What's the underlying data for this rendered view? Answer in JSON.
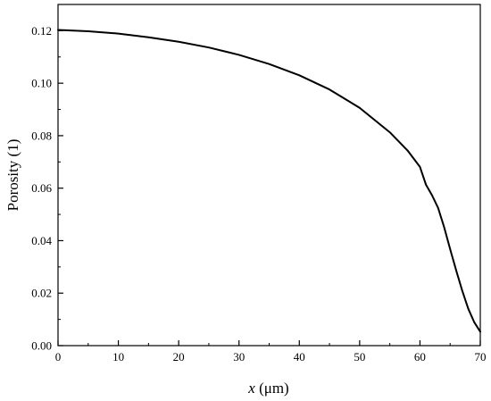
{
  "chart_data": {
    "type": "line",
    "title": "",
    "xlabel_var": "x",
    "xlabel_unit": " (μm)",
    "ylabel": "Porosity (1)",
    "xlim": [
      0,
      70
    ],
    "ylim": [
      0,
      0.13
    ],
    "xticks": [
      0,
      10,
      20,
      30,
      40,
      50,
      60,
      70
    ],
    "yticks": [
      0.0,
      0.02,
      0.04,
      0.06,
      0.08,
      0.1,
      0.12
    ],
    "xtick_labels": [
      "0",
      "10",
      "20",
      "30",
      "40",
      "50",
      "60",
      "70"
    ],
    "ytick_labels": [
      "0.00",
      "0.02",
      "0.04",
      "0.06",
      "0.08",
      "0.10",
      "0.12"
    ],
    "grid": false,
    "line_color": "#000000",
    "series": [
      {
        "x": [
          0,
          5,
          10,
          15,
          20,
          25,
          30,
          35,
          40,
          45,
          50,
          55,
          58,
          60,
          61,
          62,
          63,
          64,
          65,
          66,
          67,
          68,
          69,
          70
        ],
        "y": [
          0.1203,
          0.1198,
          0.1189,
          0.1175,
          0.1158,
          0.1136,
          0.1108,
          0.1073,
          0.103,
          0.0976,
          0.0906,
          0.0813,
          0.0742,
          0.0681,
          0.0613,
          0.0573,
          0.0525,
          0.0452,
          0.0368,
          0.0287,
          0.021,
          0.0141,
          0.0089,
          0.0053
        ]
      }
    ]
  }
}
